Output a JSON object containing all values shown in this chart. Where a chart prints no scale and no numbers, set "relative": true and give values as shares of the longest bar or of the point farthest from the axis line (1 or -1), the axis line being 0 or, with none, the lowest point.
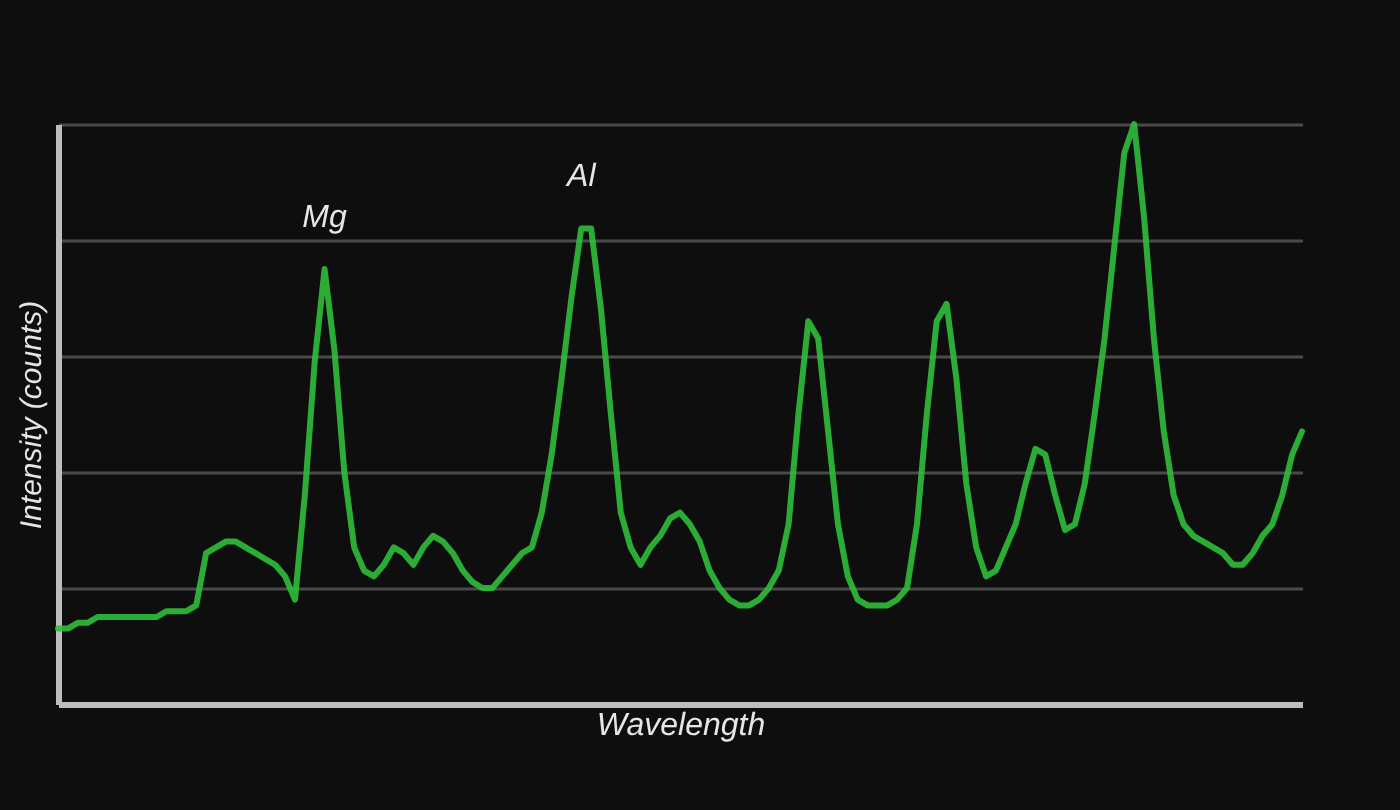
{
  "chart_data": {
    "type": "line",
    "relative": true,
    "xlabel": "Wavelength",
    "ylabel": "Intensity (counts)",
    "grid": "y",
    "line_style": "solid",
    "marker": "none",
    "categories": [
      null,
      null,
      null,
      null,
      null,
      null,
      null,
      null,
      null,
      null,
      null,
      null,
      null,
      null,
      null,
      null,
      null,
      null,
      null,
      null,
      null,
      null,
      null,
      null,
      null,
      null,
      null,
      null,
      null,
      null,
      null,
      null,
      null,
      null,
      null,
      null,
      null,
      null,
      null,
      null,
      null,
      null,
      null,
      null,
      null,
      null,
      null,
      null,
      null,
      null,
      null,
      null,
      null,
      null,
      null,
      null,
      null,
      null,
      null,
      null,
      null,
      null,
      null,
      null,
      null,
      null,
      null,
      null,
      null,
      null,
      null,
      null,
      null,
      null,
      null,
      null,
      null,
      null,
      null,
      null,
      null,
      null,
      null,
      null,
      null,
      null,
      null,
      null,
      null,
      null,
      null,
      null,
      null,
      null,
      null,
      null,
      null,
      null,
      null,
      null,
      null,
      null,
      null,
      null,
      null,
      null,
      null,
      null,
      null,
      null,
      null,
      null,
      null,
      null,
      null,
      null,
      null,
      null,
      null,
      null,
      null,
      null,
      null,
      null,
      null,
      null,
      null
    ],
    "series": [
      {
        "color": "#2fbf3a",
        "values": [
          0.13,
          0.13,
          0.14,
          0.14,
          0.15,
          0.15,
          0.15,
          0.15,
          0.15,
          0.15,
          0.15,
          0.16,
          0.16,
          0.16,
          0.17,
          0.26,
          0.27,
          0.28,
          0.28,
          0.27,
          0.26,
          0.25,
          0.24,
          0.22,
          0.18,
          0.36,
          0.59,
          0.75,
          0.61,
          0.4,
          0.27,
          0.23,
          0.22,
          0.24,
          0.27,
          0.26,
          0.24,
          0.27,
          0.29,
          0.28,
          0.26,
          0.23,
          0.21,
          0.2,
          0.2,
          0.22,
          0.24,
          0.26,
          0.27,
          0.33,
          0.43,
          0.56,
          0.7,
          0.82,
          0.82,
          0.68,
          0.5,
          0.33,
          0.27,
          0.24,
          0.27,
          0.29,
          0.32,
          0.33,
          0.31,
          0.28,
          0.23,
          0.2,
          0.18,
          0.17,
          0.17,
          0.18,
          0.2,
          0.23,
          0.31,
          0.5,
          0.66,
          0.63,
          0.47,
          0.31,
          0.22,
          0.18,
          0.17,
          0.17,
          0.17,
          0.18,
          0.2,
          0.31,
          0.5,
          0.66,
          0.69,
          0.56,
          0.38,
          0.27,
          0.22,
          0.23,
          0.27,
          0.31,
          0.38,
          0.44,
          0.43,
          0.36,
          0.3,
          0.31,
          0.38,
          0.5,
          0.63,
          0.79,
          0.95,
          1,
          0.84,
          0.63,
          0.47,
          0.36,
          0.31,
          0.29,
          0.28,
          0.27,
          0.26,
          0.24,
          0.24,
          0.26,
          0.29,
          0.31,
          0.36,
          0.43,
          0.47
        ]
      }
    ],
    "annotations": [
      "Mg",
      "Al"
    ]
  }
}
